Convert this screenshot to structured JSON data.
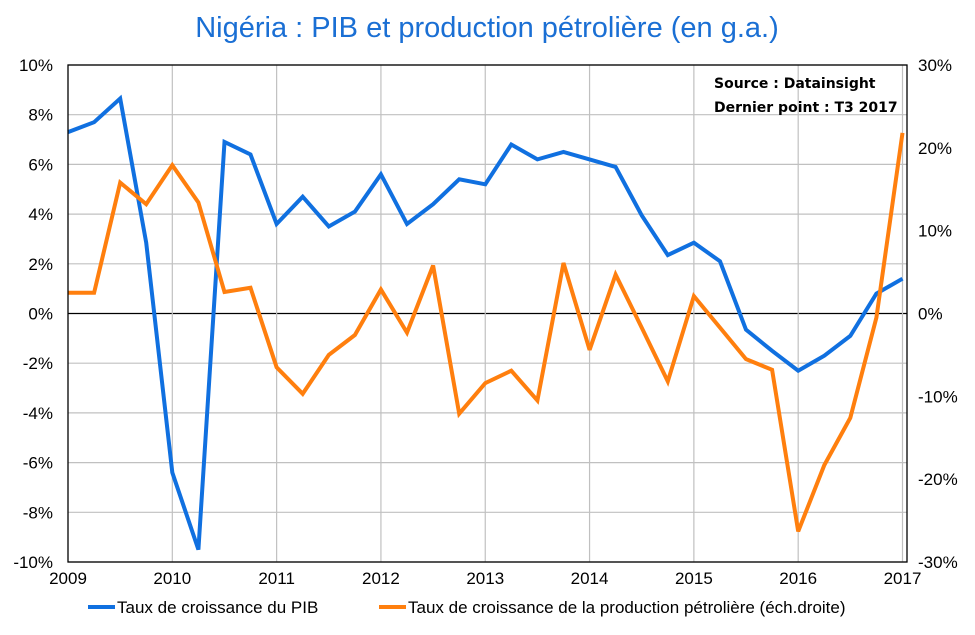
{
  "chart_data": {
    "type": "line",
    "title": "Nigéria : PIB et production pétrolière (en g.a.)",
    "annotation": [
      "Source : Datainsight",
      "Dernier point : T3 2017"
    ],
    "x_ticks": [
      "2009",
      "2010",
      "2011",
      "2012",
      "2013",
      "2014",
      "2015",
      "2016",
      "2017"
    ],
    "xlim": [
      2009,
      2017
    ],
    "y_left": {
      "ticks": [
        "10%",
        "8%",
        "6%",
        "4%",
        "2%",
        "0%",
        "-2%",
        "-4%",
        "-6%",
        "-8%",
        "-10%"
      ],
      "ylim": [
        -10,
        10
      ],
      "unit": "%"
    },
    "y_right": {
      "ticks": [
        "30%",
        "20%",
        "10%",
        "0%",
        "-10%",
        "-20%",
        "-30%"
      ],
      "ylim": [
        -30,
        30
      ],
      "unit": "%"
    },
    "grid": true,
    "legend_position": "bottom",
    "x": [
      2009,
      2009.25,
      2009.5,
      2009.75,
      2010,
      2010.25,
      2010.5,
      2010.75,
      2011,
      2011.25,
      2011.5,
      2011.75,
      2012,
      2012.25,
      2012.5,
      2012.75,
      2013,
      2013.25,
      2013.5,
      2013.75,
      2014,
      2014.25,
      2014.5,
      2014.75,
      2015,
      2015.25,
      2015.5,
      2015.75,
      2016,
      2016.25,
      2016.5,
      2016.75,
      2017
    ],
    "series": [
      {
        "name": "Taux de croissance du PIB",
        "axis": "left",
        "color": "#1070e0",
        "values": [
          7.3,
          7.7,
          8.65,
          2.85,
          -6.4,
          -9.5,
          6.9,
          6.4,
          3.6,
          4.7,
          3.5,
          4.1,
          5.6,
          3.6,
          4.4,
          5.4,
          5.2,
          6.8,
          6.2,
          6.5,
          6.2,
          5.9,
          3.95,
          2.35,
          2.85,
          2.1,
          -0.65,
          -1.5,
          -2.3,
          -1.7,
          -0.9,
          0.8,
          1.4
        ]
      },
      {
        "name": "Taux de croissance de la production pétrolière (éch.droite)",
        "axis": "right",
        "color": "#ff7f0e",
        "values": [
          2.5,
          2.5,
          15.8,
          13.2,
          17.9,
          13.4,
          2.6,
          3.1,
          -6.5,
          -9.7,
          -5.0,
          -2.6,
          2.9,
          -2.3,
          5.8,
          -12.1,
          -8.4,
          -6.9,
          -10.5,
          6.1,
          -4.4,
          4.7,
          -1.7,
          -8.2,
          2.1,
          -1.7,
          -5.5,
          -6.8,
          -26.3,
          -18.3,
          -12.6,
          -0.5,
          21.8
        ]
      }
    ]
  }
}
